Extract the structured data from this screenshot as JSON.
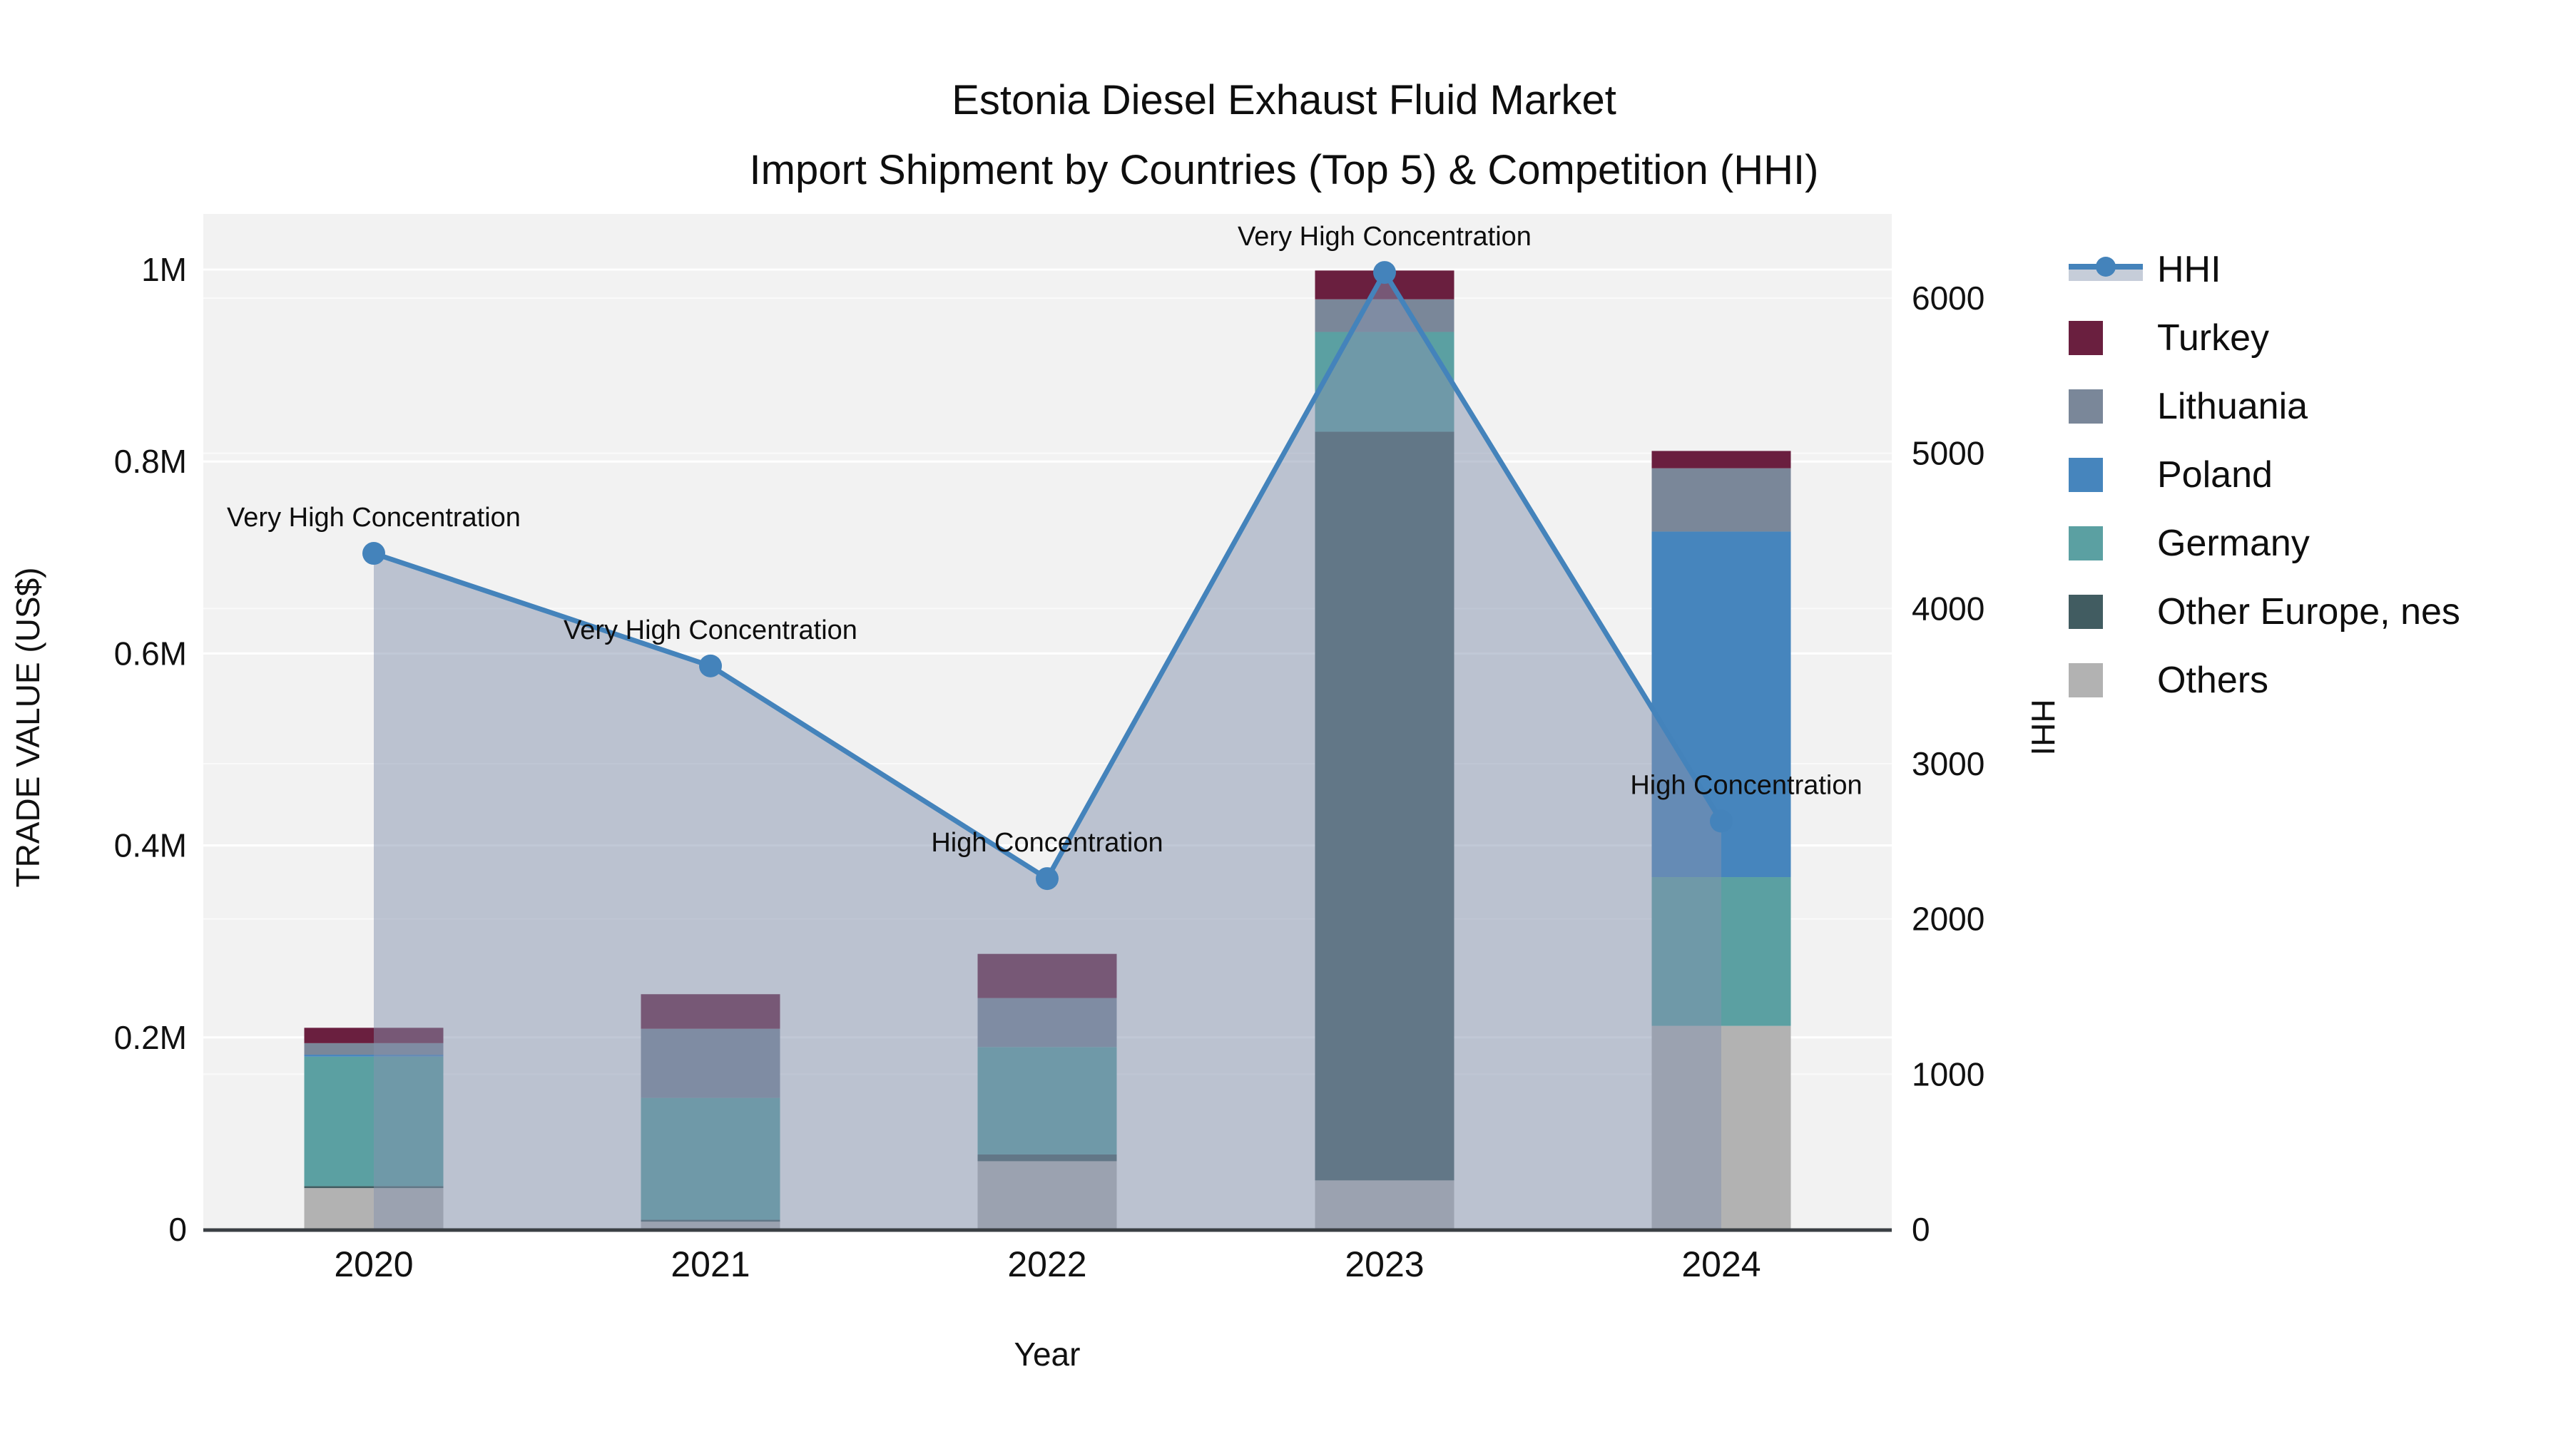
{
  "title": {
    "line1": "Estonia Diesel Exhaust Fluid Market",
    "line2": "Import Shipment by Countries (Top 5) & Competition (HHI)"
  },
  "axes": {
    "x_title": "Year",
    "y_left_title": "TRADE VALUE (US$)",
    "y_right_title": "HHI",
    "x_ticks": [
      "2020",
      "2021",
      "2022",
      "2023",
      "2024"
    ],
    "y_left_ticks": [
      "0",
      "0.2M",
      "0.4M",
      "0.6M",
      "0.8M",
      "1M"
    ],
    "y_right_ticks": [
      "0",
      "1000",
      "2000",
      "3000",
      "4000",
      "5000",
      "6000"
    ]
  },
  "legend": {
    "items": [
      {
        "label": "HHI",
        "type": "line",
        "color": "#4483bb",
        "band_color": "#c6cdd9"
      },
      {
        "label": "Turkey",
        "type": "square",
        "color": "#6a1f3f"
      },
      {
        "label": "Lithuania",
        "type": "square",
        "color": "#7a8799"
      },
      {
        "label": "Poland",
        "type": "square",
        "color": "#4685bd"
      },
      {
        "label": "Germany",
        "type": "square",
        "color": "#5ba0a2"
      },
      {
        "label": "Other Europe, nes",
        "type": "square",
        "color": "#415c61"
      },
      {
        "label": "Others",
        "type": "square",
        "color": "#b2b2b2"
      }
    ]
  },
  "chart_data": {
    "type": "bar",
    "subtype": "stacked-bars-with-line-overlay",
    "title": "Estonia Diesel Exhaust Fluid Market Import Shipment by Countries (Top 5) & Competition (HHI)",
    "xlabel": "Year",
    "ylabel_left": "TRADE VALUE (US$)",
    "ylabel_right": "HHI",
    "categories": [
      "2020",
      "2021",
      "2022",
      "2023",
      "2024"
    ],
    "bar_value_unit": "million US$",
    "ylim_left_musd": [
      0,
      1.0
    ],
    "ylim_right_hhi": [
      0,
      6200
    ],
    "grid": true,
    "legend_position": "right",
    "series": [
      {
        "name": "Others",
        "color": "#b2b2b2",
        "values": [
          0.043,
          0.008,
          0.071,
          0.051,
          0.212
        ]
      },
      {
        "name": "Other Europe, nes",
        "color": "#415c61",
        "values": [
          0.002,
          0.002,
          0.007,
          0.78,
          0
        ]
      },
      {
        "name": "Germany",
        "color": "#5ba0a2",
        "values": [
          0.135,
          0.127,
          0.112,
          0.104,
          0.155
        ]
      },
      {
        "name": "Poland",
        "color": "#4685bd",
        "values": [
          0.002,
          0,
          0,
          0,
          0.36
        ]
      },
      {
        "name": "Lithuania",
        "color": "#7a8799",
        "values": [
          0.012,
          0.072,
          0.051,
          0.034,
          0.066
        ]
      },
      {
        "name": "Turkey",
        "color": "#6a1f3f",
        "values": [
          0.016,
          0.036,
          0.046,
          0.03,
          0.018
        ]
      }
    ],
    "line_series": {
      "name": "HHI",
      "color": "#4483bb",
      "fill_color": "rgba(132,146,174,0.50)",
      "values": [
        4355,
        3630,
        2260,
        6165,
        2630
      ]
    },
    "annotations": [
      {
        "category": "2020",
        "text": "Very High Concentration"
      },
      {
        "category": "2021",
        "text": "Very High Concentration"
      },
      {
        "category": "2022",
        "text": "High Concentration"
      },
      {
        "category": "2023",
        "text": "Very High Concentration"
      },
      {
        "category": "2024",
        "text": "High Concentration"
      }
    ]
  }
}
